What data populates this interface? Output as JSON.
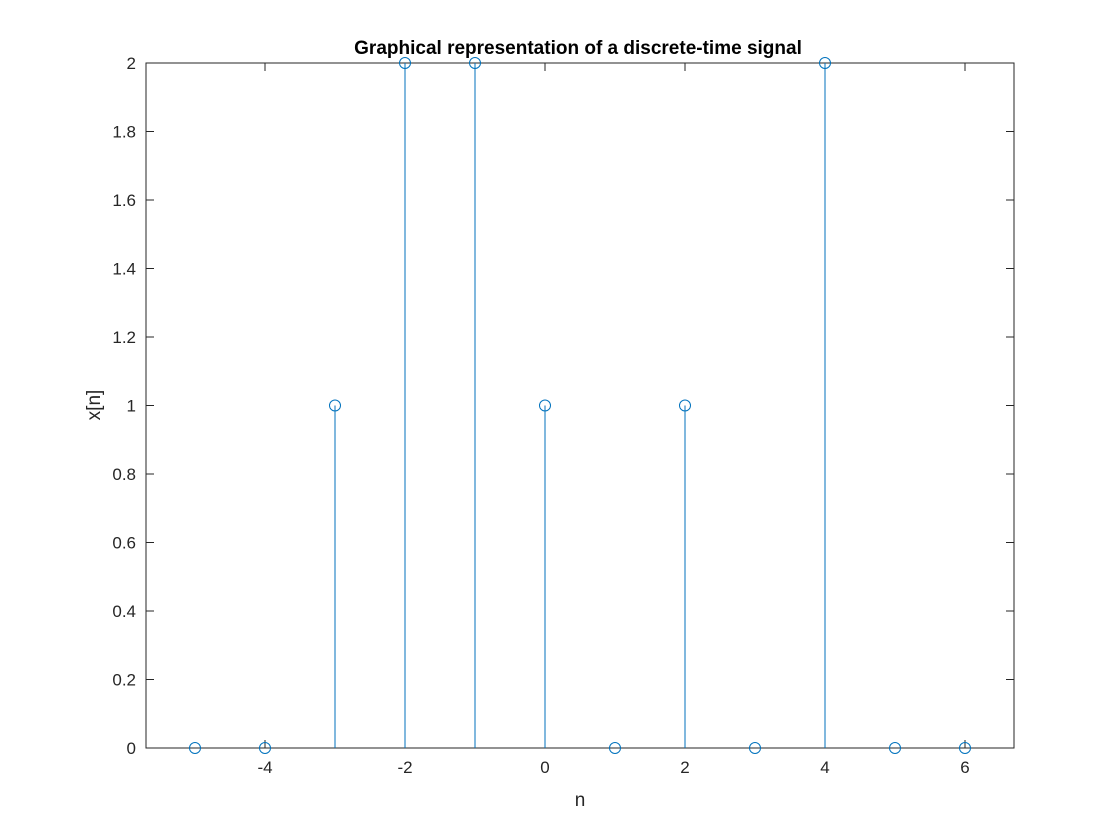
{
  "chart_data": {
    "type": "stem",
    "title": "Graphical representation of a discrete-time signal",
    "xlabel": "n",
    "ylabel": "x[n]",
    "x": [
      -5,
      -4,
      -3,
      -2,
      -1,
      0,
      1,
      2,
      3,
      4,
      5,
      6
    ],
    "values": [
      0,
      0,
      1,
      2,
      2,
      1,
      0,
      1,
      0,
      2,
      0,
      0
    ],
    "xlim": [
      -5.7,
      6.7
    ],
    "ylim": [
      0,
      2
    ],
    "xticks": [
      "-4",
      "-2",
      "0",
      "2",
      "4",
      "6"
    ],
    "yticks": [
      "0",
      "0.2",
      "0.4",
      "0.6",
      "0.8",
      "1",
      "1.2",
      "1.4",
      "1.6",
      "1.8",
      "2"
    ],
    "grid": false,
    "legend": "none",
    "colors": {
      "series": "#0072bd",
      "axes": "#262626"
    }
  }
}
